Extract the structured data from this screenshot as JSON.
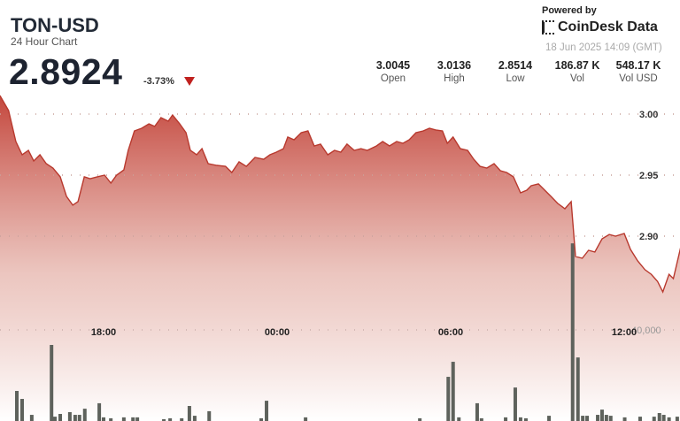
{
  "header": {
    "title": "TON-USD",
    "subtitle": "24 Hour Chart",
    "price": "2.8924",
    "change": "-3.73%",
    "change_direction": "down",
    "powered_by": "Powered by",
    "brand": "CoinDesk Data",
    "timestamp": "18 Jun 2025 14:09 (GMT)"
  },
  "stats": [
    {
      "value": "3.0045",
      "label": "Open"
    },
    {
      "value": "3.0136",
      "label": "High"
    },
    {
      "value": "2.8514",
      "label": "Low"
    },
    {
      "value": "186.87 K",
      "label": "Vol"
    },
    {
      "value": "548.17 K",
      "label": "Vol USD"
    }
  ],
  "colors": {
    "line": "#b8392e",
    "fill_top": "#c4473d",
    "fill_bottom": "#ffffff",
    "volume_bar": "#5e625c",
    "down": "#c0211f"
  },
  "chart_data": {
    "type": "line",
    "price_axis": {
      "ticks": [
        "3.00",
        "2.95",
        "2.90"
      ],
      "tick_values": [
        3.0,
        2.95,
        2.9
      ],
      "position": "right"
    },
    "time_axis": {
      "ticks": [
        "18:00",
        "00:00",
        "06:00",
        "12:00"
      ]
    },
    "volume_axis": {
      "ticks": [
        "40,000"
      ],
      "tick_values": [
        40000
      ]
    },
    "grid": "dotted horizontal",
    "price_series": [
      [
        "14:25",
        3.0152
      ],
      [
        "14:43",
        3.0029
      ],
      [
        "14:58",
        2.9775
      ],
      [
        "15:11",
        2.9667
      ],
      [
        "15:24",
        2.9703
      ],
      [
        "15:35",
        2.9616
      ],
      [
        "15:48",
        2.9667
      ],
      [
        "16:01",
        2.9594
      ],
      [
        "16:15",
        2.9558
      ],
      [
        "16:30",
        2.9486
      ],
      [
        "16:43",
        2.9326
      ],
      [
        "16:56",
        2.9254
      ],
      [
        "17:07",
        2.9283
      ],
      [
        "17:20",
        2.9486
      ],
      [
        "17:32",
        2.9471
      ],
      [
        "17:47",
        2.9486
      ],
      [
        "18:02",
        2.95
      ],
      [
        "18:15",
        2.9435
      ],
      [
        "18:27",
        2.95
      ],
      [
        "18:42",
        2.9543
      ],
      [
        "18:51",
        2.9703
      ],
      [
        "19:04",
        2.9862
      ],
      [
        "19:19",
        2.9884
      ],
      [
        "19:34",
        2.992
      ],
      [
        "19:46",
        2.9899
      ],
      [
        "19:59",
        2.9971
      ],
      [
        "20:14",
        2.9942
      ],
      [
        "20:23",
        2.9993
      ],
      [
        "20:38",
        2.992
      ],
      [
        "20:51",
        2.9848
      ],
      [
        "21:00",
        2.9703
      ],
      [
        "21:13",
        2.9667
      ],
      [
        "21:24",
        2.9717
      ],
      [
        "21:37",
        2.9594
      ],
      [
        "21:55",
        2.958
      ],
      [
        "22:13",
        2.9572
      ],
      [
        "22:26",
        2.9522
      ],
      [
        "22:41",
        2.9609
      ],
      [
        "22:56",
        2.9572
      ],
      [
        "23:14",
        2.9645
      ],
      [
        "23:32",
        2.963
      ],
      [
        "23:45",
        2.9667
      ],
      [
        "23:58",
        2.9688
      ],
      [
        "00:13",
        2.9717
      ],
      [
        "00:22",
        2.9812
      ],
      [
        "00:35",
        2.979
      ],
      [
        "00:50",
        2.9848
      ],
      [
        "01:04",
        2.9862
      ],
      [
        "01:17",
        2.9739
      ],
      [
        "01:30",
        2.9754
      ],
      [
        "01:45",
        2.9667
      ],
      [
        "01:59",
        2.9703
      ],
      [
        "02:12",
        2.9688
      ],
      [
        "02:25",
        2.9754
      ],
      [
        "02:40",
        2.9703
      ],
      [
        "02:54",
        2.9717
      ],
      [
        "03:07",
        2.9703
      ],
      [
        "03:26",
        2.9739
      ],
      [
        "03:39",
        2.9775
      ],
      [
        "03:53",
        2.9739
      ],
      [
        "04:08",
        2.9775
      ],
      [
        "04:21",
        2.9761
      ],
      [
        "04:34",
        2.979
      ],
      [
        "04:48",
        2.9848
      ],
      [
        "05:03",
        2.9862
      ],
      [
        "05:16",
        2.9884
      ],
      [
        "05:29",
        2.987
      ],
      [
        "05:43",
        2.9862
      ],
      [
        "05:53",
        2.9761
      ],
      [
        "06:05",
        2.9812
      ],
      [
        "06:20",
        2.9717
      ],
      [
        "06:35",
        2.9703
      ],
      [
        "06:48",
        2.963
      ],
      [
        "07:01",
        2.9572
      ],
      [
        "07:15",
        2.9558
      ],
      [
        "07:30",
        2.9594
      ],
      [
        "07:43",
        2.9536
      ],
      [
        "07:56",
        2.9522
      ],
      [
        "08:10",
        2.9486
      ],
      [
        "08:25",
        2.9355
      ],
      [
        "08:38",
        2.9377
      ],
      [
        "08:47",
        2.9413
      ],
      [
        "09:02",
        2.9428
      ],
      [
        "09:15",
        2.9377
      ],
      [
        "09:28",
        2.9326
      ],
      [
        "09:42",
        2.9268
      ],
      [
        "09:57",
        2.9225
      ],
      [
        "10:10",
        2.9283
      ],
      [
        "10:19",
        2.8833
      ],
      [
        "10:33",
        2.8819
      ],
      [
        "10:46",
        2.8884
      ],
      [
        "10:59",
        2.887
      ],
      [
        "11:14",
        2.8978
      ],
      [
        "11:29",
        2.9014
      ],
      [
        "11:42",
        2.9
      ],
      [
        "12:00",
        2.9022
      ],
      [
        "12:13",
        2.8891
      ],
      [
        "12:28",
        2.8797
      ],
      [
        "12:43",
        2.8725
      ],
      [
        "12:56",
        2.8688
      ],
      [
        "13:09",
        2.863
      ],
      [
        "13:20",
        2.8543
      ],
      [
        "13:33",
        2.8688
      ],
      [
        "13:42",
        2.8652
      ],
      [
        "13:57",
        2.8906
      ]
    ],
    "volume_series": [
      [
        "15:00",
        13200
      ],
      [
        "15:11",
        9700
      ],
      [
        "15:31",
        2700
      ],
      [
        "16:12",
        33400
      ],
      [
        "16:19",
        1900
      ],
      [
        "16:30",
        3100
      ],
      [
        "16:50",
        3900
      ],
      [
        "17:01",
        2700
      ],
      [
        "17:10",
        2700
      ],
      [
        "17:21",
        5400
      ],
      [
        "17:51",
        7800
      ],
      [
        "18:00",
        1600
      ],
      [
        "18:15",
        1200
      ],
      [
        "18:42",
        1600
      ],
      [
        "19:01",
        1600
      ],
      [
        "19:10",
        1600
      ],
      [
        "20:05",
        800
      ],
      [
        "20:18",
        1200
      ],
      [
        "20:42",
        1200
      ],
      [
        "20:58",
        6600
      ],
      [
        "21:09",
        2300
      ],
      [
        "21:39",
        4300
      ],
      [
        "23:27",
        1200
      ],
      [
        "23:38",
        8900
      ],
      [
        "00:59",
        1600
      ],
      [
        "04:56",
        1200
      ],
      [
        "05:55",
        19400
      ],
      [
        "06:05",
        26000
      ],
      [
        "06:17",
        1600
      ],
      [
        "06:55",
        7800
      ],
      [
        "07:04",
        1200
      ],
      [
        "07:54",
        1600
      ],
      [
        "08:14",
        14700
      ],
      [
        "08:25",
        1600
      ],
      [
        "08:36",
        1200
      ],
      [
        "09:24",
        2300
      ],
      [
        "10:13",
        78000
      ],
      [
        "10:24",
        27900
      ],
      [
        "10:34",
        2300
      ],
      [
        "10:43",
        2300
      ],
      [
        "11:05",
        2700
      ],
      [
        "11:14",
        5000
      ],
      [
        "11:23",
        2700
      ],
      [
        "11:32",
        2300
      ],
      [
        "12:01",
        1600
      ],
      [
        "12:33",
        1900
      ],
      [
        "13:02",
        1900
      ],
      [
        "13:13",
        3500
      ],
      [
        "13:22",
        2700
      ],
      [
        "13:33",
        1600
      ],
      [
        "13:50",
        1900
      ]
    ]
  }
}
